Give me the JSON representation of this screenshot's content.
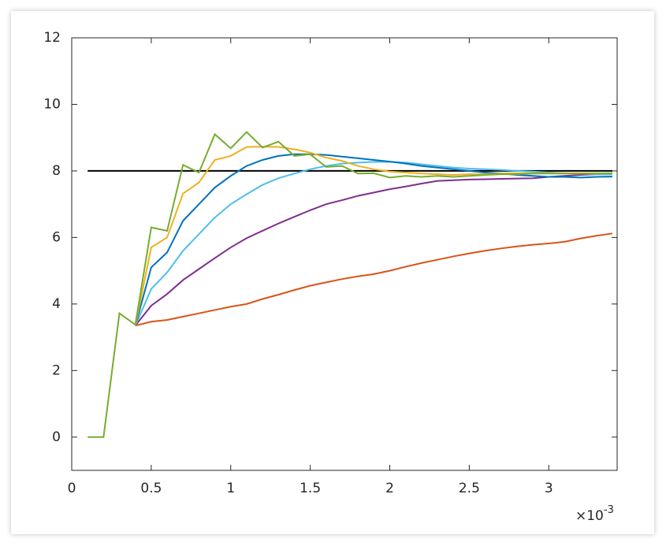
{
  "chart_data": {
    "type": "line",
    "x": [
      0.1,
      0.2,
      0.3,
      0.4,
      0.5,
      0.6,
      0.7,
      0.8,
      0.9,
      1.0,
      1.1,
      1.2,
      1.3,
      1.4,
      1.5,
      1.6,
      1.7,
      1.8,
      1.9,
      2.0,
      2.1,
      2.2,
      2.3,
      2.4,
      2.5,
      2.6,
      2.7,
      2.8,
      2.9,
      3.0,
      3.1,
      3.2,
      3.3,
      3.4
    ],
    "x_multiplier": {
      "base": "×10",
      "exponent": "-3"
    },
    "xlim": [
      0,
      3.43
    ],
    "xticks": [
      0,
      0.5,
      1,
      1.5,
      2,
      2.5,
      3
    ],
    "ylim": [
      -1,
      12
    ],
    "yticks": [
      0,
      2,
      4,
      6,
      8,
      10,
      12
    ],
    "series": [
      {
        "color": "#000000",
        "values": [
          8,
          8,
          8,
          8,
          8,
          8,
          8,
          8,
          8,
          8,
          8,
          8,
          8,
          8,
          8,
          8,
          8,
          8,
          8,
          8,
          8,
          8,
          8,
          8,
          8,
          8,
          8,
          8,
          8,
          8,
          8,
          8,
          8,
          8
        ]
      },
      {
        "color": "#d95319",
        "values": [
          null,
          null,
          null,
          3.35,
          3.47,
          3.52,
          3.62,
          3.72,
          3.82,
          3.92,
          4.0,
          4.15,
          4.28,
          4.42,
          4.55,
          4.65,
          4.75,
          4.83,
          4.9,
          5.0,
          5.12,
          5.23,
          5.33,
          5.43,
          5.52,
          5.6,
          5.67,
          5.73,
          5.78,
          5.82,
          5.87,
          5.97,
          6.05,
          6.12
        ]
      },
      {
        "color": "#7e2f8e",
        "values": [
          null,
          null,
          null,
          3.35,
          3.95,
          4.3,
          4.72,
          5.05,
          5.38,
          5.7,
          5.98,
          6.2,
          6.42,
          6.62,
          6.82,
          7.0,
          7.12,
          7.25,
          7.35,
          7.45,
          7.53,
          7.62,
          7.7,
          7.72,
          7.74,
          7.75,
          7.76,
          7.77,
          7.78,
          7.82,
          7.85,
          7.88,
          7.9,
          7.9
        ]
      },
      {
        "color": "#4dbeee",
        "values": [
          null,
          null,
          null,
          3.35,
          4.45,
          4.95,
          5.6,
          6.1,
          6.6,
          7.0,
          7.3,
          7.58,
          7.78,
          7.92,
          8.05,
          8.15,
          8.22,
          8.25,
          8.27,
          8.27,
          8.25,
          8.2,
          8.15,
          8.1,
          8.07,
          8.05,
          8.03,
          8.0,
          7.98,
          7.95,
          7.93,
          7.92,
          7.9,
          7.9
        ]
      },
      {
        "color": "#0072bd",
        "values": [
          null,
          null,
          null,
          3.35,
          5.1,
          5.55,
          6.5,
          7.0,
          7.5,
          7.85,
          8.15,
          8.33,
          8.45,
          8.5,
          8.5,
          8.48,
          8.43,
          8.38,
          8.33,
          8.28,
          8.22,
          8.15,
          8.1,
          8.05,
          8.0,
          7.95,
          7.92,
          7.88,
          7.85,
          7.82,
          7.82,
          7.8,
          7.82,
          7.83
        ]
      },
      {
        "color": "#edb120",
        "values": [
          null,
          null,
          null,
          3.35,
          5.7,
          6.0,
          7.32,
          7.65,
          8.33,
          8.45,
          8.72,
          8.73,
          8.72,
          8.65,
          8.55,
          8.4,
          8.3,
          8.15,
          8.05,
          7.98,
          7.95,
          7.92,
          7.9,
          7.88,
          7.9,
          7.9,
          7.92,
          7.93,
          7.93,
          7.93,
          7.93,
          7.93,
          7.93,
          7.93
        ]
      },
      {
        "color": "#77ac30",
        "values": [
          0,
          0,
          3.72,
          3.38,
          6.3,
          6.2,
          8.18,
          7.95,
          9.1,
          8.68,
          9.17,
          8.7,
          8.88,
          8.45,
          8.5,
          8.12,
          8.15,
          7.92,
          7.93,
          7.8,
          7.85,
          7.82,
          7.85,
          7.82,
          7.85,
          7.88,
          7.9,
          7.9,
          7.92,
          7.92,
          7.92,
          7.92,
          7.92,
          7.93
        ]
      }
    ]
  }
}
